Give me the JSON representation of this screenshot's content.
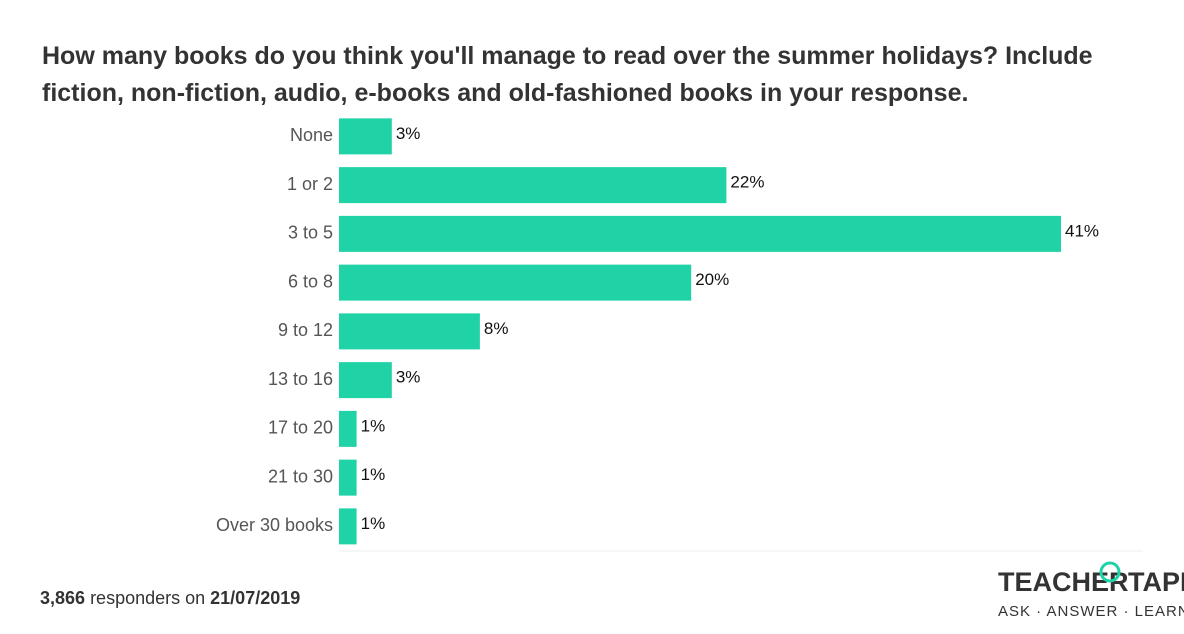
{
  "chart_data": {
    "type": "hbar",
    "title": "How many books do you think you'll manage to read over the summer holidays? Include fiction, non-fiction, audio, e-books and old-fashioned books in your response.",
    "categories": [
      "None",
      "1 or 2",
      "3 to 5",
      "6 to 8",
      "9 to 12",
      "13 to 16",
      "17 to 20",
      "21 to 30",
      "Over 30 books"
    ],
    "values": [
      3,
      22,
      41,
      20,
      8,
      3,
      1,
      1,
      1
    ],
    "value_labels": [
      "3%",
      "22%",
      "41%",
      "20%",
      "8%",
      "3%",
      "1%",
      "1%",
      "1%"
    ],
    "color": "#20d3a7"
  },
  "footer": {
    "count": "3,866",
    "text": "responders on",
    "date": "21/07/2019"
  },
  "logo": {
    "left": "TEACHER",
    "right": "TAPP",
    "tagline": "ASK · ANSWER · LEARN"
  }
}
